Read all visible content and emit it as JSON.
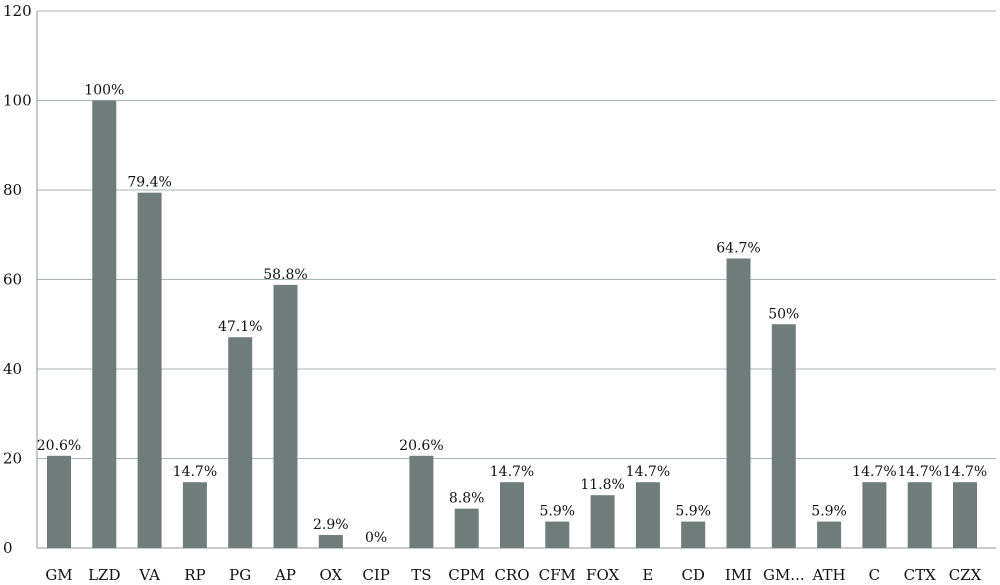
{
  "chart_data": {
    "type": "bar",
    "title": "",
    "xlabel": "",
    "ylabel": "",
    "ylim": [
      0,
      120
    ],
    "yticks": [
      0,
      20,
      40,
      60,
      80,
      100,
      120
    ],
    "grid": true,
    "bar_color": "#6f7c7c",
    "grid_color": "#a9b4b4",
    "categories": [
      "GM",
      "LZD",
      "VA",
      "RP",
      "PG",
      "AP",
      "OX",
      "CIP",
      "TS",
      "CPM",
      "CRO",
      "CFM",
      "FOX",
      "E",
      "CD",
      "IMI",
      "GM...",
      "ATH",
      "C",
      "CTX",
      "CZX"
    ],
    "values": [
      20.6,
      100,
      79.4,
      14.7,
      47.1,
      58.8,
      2.9,
      0,
      20.6,
      8.8,
      14.7,
      5.9,
      11.8,
      14.7,
      5.9,
      64.7,
      50,
      5.9,
      14.7,
      14.7,
      14.7
    ],
    "data_labels": [
      "20.6%",
      "100%",
      "79.4%",
      "14.7%",
      "47.1%",
      "58.8%",
      "2.9%",
      "0%",
      "20.6%",
      "8.8%",
      "14.7%",
      "5.9%",
      "11.8%",
      "14.7%",
      "5.9%",
      "64.7%",
      "50%",
      "5.9%",
      "14.7%",
      "14.7%",
      "14.7%"
    ]
  }
}
